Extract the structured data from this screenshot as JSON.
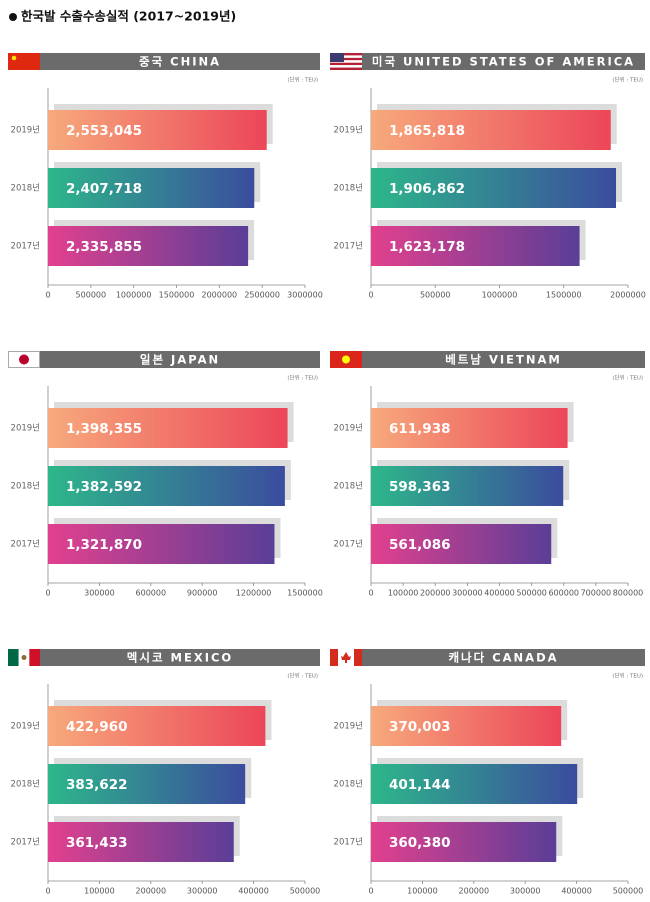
{
  "title": "한국발 수출수송실적 (2017~2019년)",
  "chart_data": [
    {
      "type": "hbar",
      "title": "중국 CHINA",
      "unit": "(단위 : TEU)",
      "categories": [
        "2019년",
        "2018년",
        "2017년"
      ],
      "values": [
        2553045,
        2407718,
        2335855
      ],
      "value_labels": [
        "2,553,045",
        "2,407,718",
        "2,335,855"
      ],
      "colors": [
        [
          "#f7a97c",
          "#ec4659"
        ],
        [
          "#2db78a",
          "#3b4c9e"
        ],
        [
          "#e2408e",
          "#5a3e97"
        ]
      ],
      "xlim": [
        0,
        3000000
      ],
      "xticks": [
        0,
        500000,
        1000000,
        1500000,
        2000000,
        2500000,
        3000000
      ]
    },
    {
      "type": "hbar",
      "title": "미국 UNITED STATES OF AMERICA",
      "unit": "(단위 : TEU)",
      "categories": [
        "2019년",
        "2018년",
        "2017년"
      ],
      "values": [
        1865818,
        1906862,
        1623178
      ],
      "value_labels": [
        "1,865,818",
        "1,906,862",
        "1,623,178"
      ],
      "colors": [
        [
          "#f7a97c",
          "#ec4659"
        ],
        [
          "#2db78a",
          "#3b4c9e"
        ],
        [
          "#e2408e",
          "#5a3e97"
        ]
      ],
      "xlim": [
        0,
        2000000
      ],
      "xticks": [
        0,
        500000,
        1000000,
        1500000,
        2000000
      ]
    },
    {
      "type": "hbar",
      "title": "일본 JAPAN",
      "unit": "(단위 : TEU)",
      "categories": [
        "2019년",
        "2018년",
        "2017년"
      ],
      "values": [
        1398355,
        1382592,
        1321870
      ],
      "value_labels": [
        "1,398,355",
        "1,382,592",
        "1,321,870"
      ],
      "colors": [
        [
          "#f7a97c",
          "#ec4659"
        ],
        [
          "#2db78a",
          "#3b4c9e"
        ],
        [
          "#e2408e",
          "#5a3e97"
        ]
      ],
      "xlim": [
        0,
        1500000
      ],
      "xticks": [
        0,
        300000,
        600000,
        900000,
        1200000,
        1500000
      ]
    },
    {
      "type": "hbar",
      "title": "베트남 VIETNAM",
      "unit": "(단위 : TEU)",
      "categories": [
        "2019년",
        "2018년",
        "2017년"
      ],
      "values": [
        611938,
        598363,
        561086
      ],
      "value_labels": [
        "611,938",
        "598,363",
        "561,086"
      ],
      "colors": [
        [
          "#f7a97c",
          "#ec4659"
        ],
        [
          "#2db78a",
          "#3b4c9e"
        ],
        [
          "#e2408e",
          "#5a3e97"
        ]
      ],
      "xlim": [
        0,
        800000
      ],
      "xticks": [
        0,
        100000,
        200000,
        300000,
        400000,
        500000,
        600000,
        700000,
        800000
      ]
    },
    {
      "type": "hbar",
      "title": "멕시코 MEXICO",
      "unit": "(단위 : TEU)",
      "categories": [
        "2019년",
        "2018년",
        "2017년"
      ],
      "values": [
        422960,
        383622,
        361433
      ],
      "value_labels": [
        "422,960",
        "383,622",
        "361,433"
      ],
      "colors": [
        [
          "#f7a97c",
          "#ec4659"
        ],
        [
          "#2db78a",
          "#3b4c9e"
        ],
        [
          "#e2408e",
          "#5a3e97"
        ]
      ],
      "xlim": [
        0,
        500000
      ],
      "xticks": [
        0,
        100000,
        200000,
        300000,
        400000,
        500000
      ]
    },
    {
      "type": "hbar",
      "title": "캐나다 CANADA",
      "unit": "(단위 : TEU)",
      "categories": [
        "2019년",
        "2018년",
        "2017년"
      ],
      "values": [
        370003,
        401144,
        360380
      ],
      "value_labels": [
        "370,003",
        "401,144",
        "360,380"
      ],
      "colors": [
        [
          "#f7a97c",
          "#ec4659"
        ],
        [
          "#2db78a",
          "#3b4c9e"
        ],
        [
          "#e2408e",
          "#5a3e97"
        ]
      ],
      "xlim": [
        0,
        500000
      ],
      "xticks": [
        0,
        100000,
        200000,
        300000,
        400000,
        500000
      ]
    }
  ]
}
